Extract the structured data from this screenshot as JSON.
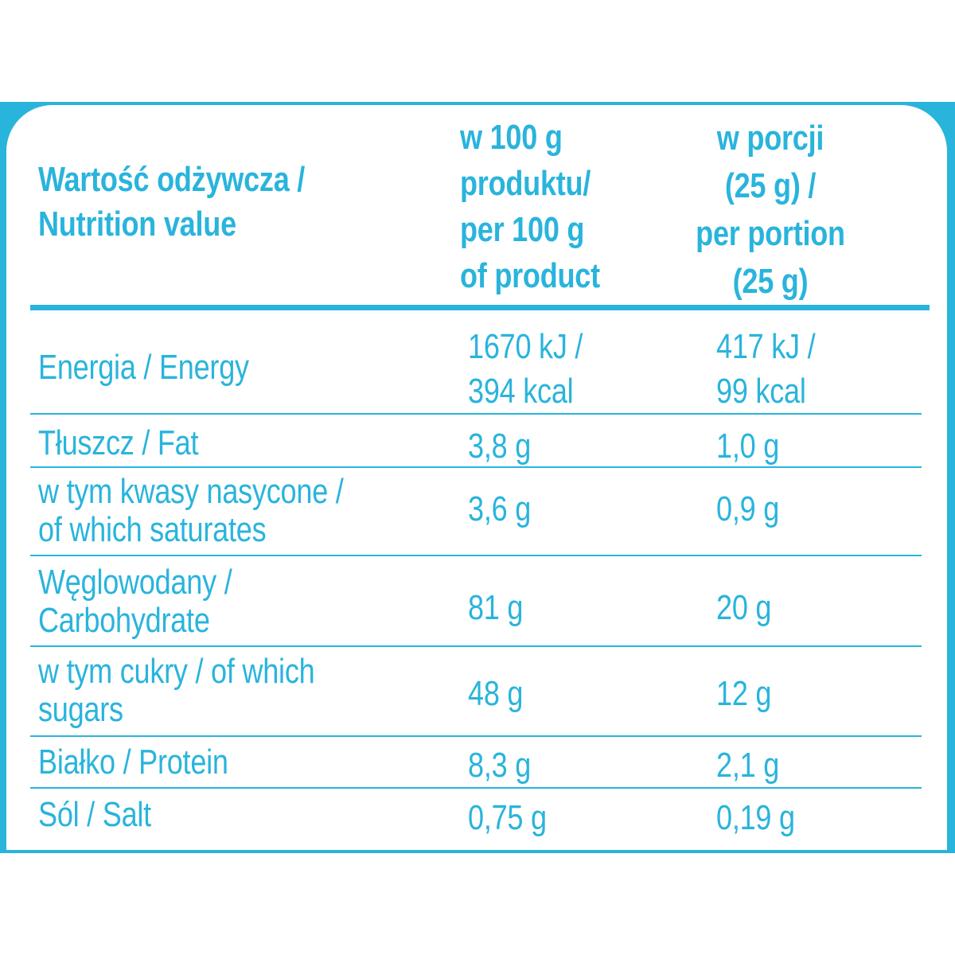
{
  "colors": {
    "accent": "#29b4dc",
    "background": "#ffffff"
  },
  "header": {
    "label": "Wartość odżywcza /\nNutrition value",
    "col_100g": "w 100 g\nproduktu/\nper 100 g\nof product",
    "col_portion": "w porcji\n(25 g) /\nper portion\n(25 g)"
  },
  "rows": [
    {
      "label": "Energia / Energy",
      "per100": "1670 kJ /\n394 kcal",
      "portion": "417 kJ /\n99 kcal"
    },
    {
      "label": "Tłuszcz / Fat",
      "per100": "3,8 g",
      "portion": "1,0 g"
    },
    {
      "label": "w tym kwasy nasycone /\nof which saturates",
      "per100": "3,6 g",
      "portion": "0,9 g"
    },
    {
      "label": "Węglowodany /\nCarbohydrate",
      "per100": "81 g",
      "portion": "20 g"
    },
    {
      "label": "w tym cukry / of which\nsugars",
      "per100": "48 g",
      "portion": "12 g"
    },
    {
      "label": "Białko / Protein",
      "per100": "8,3 g",
      "portion": "2,1 g"
    },
    {
      "label": "Sól / Salt",
      "per100": "0,75 g",
      "portion": "0,19 g"
    }
  ]
}
